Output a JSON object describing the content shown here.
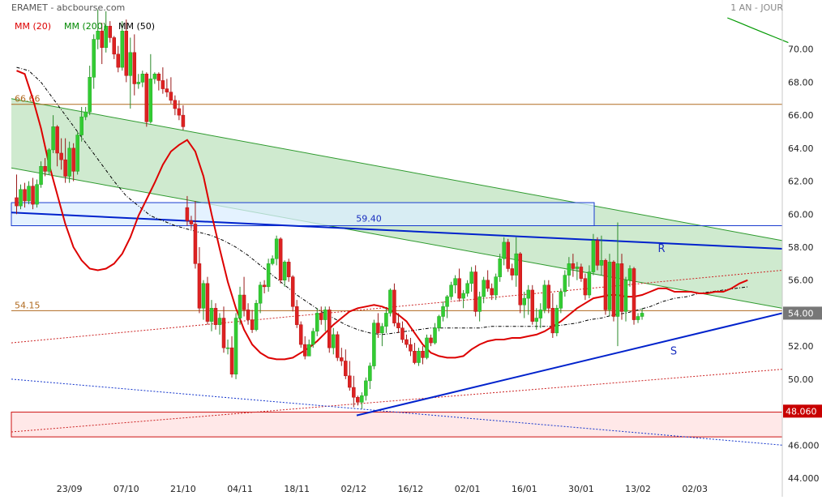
{
  "header": {
    "title": "ERAMET - abcbourse.com",
    "period": "1 AN - JOUR"
  },
  "legend": [
    {
      "label": "MM (20)",
      "color": "#dd0000"
    },
    {
      "label": "MM (200)",
      "color": "#008800"
    },
    {
      "label": "MM (50)",
      "color": "#000000"
    }
  ],
  "colors": {
    "up_candle": "#33cc33",
    "down_candle": "#dd2222",
    "ma20": "#dd0000",
    "ma50": "#000000",
    "ma200": "#009900",
    "channel_fill": "#a8d8a8",
    "support_resistance": "#0022cc",
    "fib_line": "#b06a20",
    "zone_blue": "#dbeeff",
    "zone_red": "#ffe8e8"
  },
  "chart_data": {
    "type": "candlestick",
    "ylim": [
      44,
      72
    ],
    "y_ticks": [
      "70.00",
      "68.00",
      "66.00",
      "64.00",
      "62.00",
      "60.00",
      "58.00",
      "56.00",
      "54.00",
      "52.00",
      "50.00",
      "48.00",
      "46.000",
      "44.000"
    ],
    "y_tick_values": [
      70,
      68,
      66,
      64,
      62,
      60,
      58,
      56,
      54,
      52,
      50,
      48,
      46,
      44
    ],
    "x_ticks": [
      "23/09",
      "07/10",
      "21/10",
      "04/11",
      "18/11",
      "02/12",
      "16/12",
      "02/01",
      "16/01",
      "30/01",
      "13/02",
      "02/03"
    ],
    "x_tick_bar_index": [
      13,
      27,
      41,
      55,
      69,
      83,
      97,
      111,
      125,
      139,
      153,
      167
    ],
    "last_price_label": "54.00",
    "last_price_value": 54.0,
    "low_level_label": "48.060",
    "low_level_value": 48.06,
    "annotations": [
      {
        "text": "66.66",
        "value": 66.66
      },
      {
        "text": "54.15",
        "value": 54.15
      },
      {
        "text": "59.40",
        "value": 59.4
      },
      {
        "text": "R",
        "value": 57.7
      },
      {
        "text": "S",
        "value": 51.5
      }
    ],
    "candles": [
      [
        61.0,
        62.4,
        60.0,
        60.5
      ],
      [
        60.5,
        61.8,
        60.3,
        61.5
      ],
      [
        61.5,
        61.9,
        60.4,
        60.8
      ],
      [
        60.8,
        62.0,
        60.6,
        61.7
      ],
      [
        61.7,
        62.2,
        60.3,
        60.6
      ],
      [
        60.6,
        62.1,
        60.4,
        61.8
      ],
      [
        61.8,
        63.2,
        61.6,
        62.9
      ],
      [
        62.9,
        63.4,
        62.3,
        62.6
      ],
      [
        62.6,
        64.0,
        62.4,
        63.9
      ],
      [
        63.9,
        66.0,
        63.7,
        65.3
      ],
      [
        65.3,
        65.4,
        62.9,
        63.7
      ],
      [
        63.7,
        64.6,
        62.7,
        63.3
      ],
      [
        63.3,
        64.6,
        61.9,
        62.3
      ],
      [
        62.3,
        64.4,
        61.9,
        64.0
      ],
      [
        64.0,
        64.3,
        62.0,
        62.6
      ],
      [
        62.6,
        65.0,
        62.4,
        64.8
      ],
      [
        64.8,
        66.5,
        64.4,
        65.9
      ],
      [
        65.9,
        66.5,
        65.7,
        66.2
      ],
      [
        66.2,
        69.0,
        66.0,
        68.3
      ],
      [
        68.3,
        70.9,
        67.6,
        70.6
      ],
      [
        70.6,
        72.4,
        70.0,
        71.1
      ],
      [
        71.1,
        71.6,
        69.1,
        70.1
      ],
      [
        70.1,
        72.3,
        69.8,
        71.4
      ],
      [
        71.4,
        71.7,
        70.4,
        70.7
      ],
      [
        70.7,
        70.8,
        69.4,
        69.7
      ],
      [
        69.7,
        70.2,
        68.6,
        68.9
      ],
      [
        68.9,
        71.7,
        68.7,
        71.1
      ],
      [
        71.1,
        71.8,
        68.0,
        68.4
      ],
      [
        68.4,
        70.7,
        66.4,
        69.8
      ],
      [
        69.8,
        70.9,
        67.2,
        67.9
      ],
      [
        67.9,
        68.5,
        67.6,
        68.0
      ],
      [
        68.0,
        68.7,
        67.7,
        68.5
      ],
      [
        68.5,
        68.6,
        65.3,
        65.6
      ],
      [
        65.6,
        69.7,
        65.5,
        68.2
      ],
      [
        68.2,
        68.6,
        67.9,
        68.5
      ],
      [
        68.5,
        68.6,
        67.5,
        68.1
      ],
      [
        68.1,
        68.9,
        67.3,
        67.6
      ],
      [
        67.6,
        68.2,
        67.1,
        67.4
      ],
      [
        67.4,
        68.3,
        66.7,
        66.9
      ],
      [
        66.9,
        67.2,
        66.0,
        66.4
      ],
      [
        66.4,
        66.9,
        65.7,
        66.0
      ],
      [
        66.0,
        66.6,
        65.1,
        65.3
      ],
      [
        60.4,
        61.1,
        59.3,
        59.6
      ],
      [
        59.6,
        59.9,
        59.1,
        59.4
      ],
      [
        59.4,
        60.8,
        56.7,
        57.0
      ],
      [
        57.0,
        58.0,
        54.0,
        54.3
      ],
      [
        54.3,
        56.0,
        53.6,
        55.8
      ],
      [
        55.8,
        56.2,
        53.3,
        53.5
      ],
      [
        53.5,
        54.8,
        52.9,
        54.3
      ],
      [
        54.3,
        54.6,
        53.0,
        53.3
      ],
      [
        53.3,
        54.0,
        52.7,
        53.7
      ],
      [
        53.7,
        54.4,
        51.6,
        51.9
      ],
      [
        51.9,
        52.4,
        51.5,
        51.9
      ],
      [
        51.9,
        52.6,
        50.1,
        50.3
      ],
      [
        50.3,
        54.0,
        50.0,
        53.7
      ],
      [
        53.7,
        55.6,
        53.3,
        55.1
      ],
      [
        55.1,
        56.2,
        53.8,
        54.2
      ],
      [
        54.2,
        54.6,
        53.3,
        53.6
      ],
      [
        53.6,
        54.2,
        52.8,
        53.0
      ],
      [
        53.0,
        54.8,
        52.9,
        54.6
      ],
      [
        54.6,
        55.9,
        54.0,
        55.7
      ],
      [
        55.7,
        56.0,
        55.2,
        55.6
      ],
      [
        55.6,
        57.3,
        55.3,
        57.0
      ],
      [
        57.0,
        57.5,
        56.9,
        57.3
      ],
      [
        57.3,
        58.7,
        56.9,
        58.5
      ],
      [
        58.5,
        58.6,
        55.8,
        56.0
      ],
      [
        56.0,
        57.2,
        55.6,
        57.1
      ],
      [
        57.1,
        57.3,
        55.9,
        56.2
      ],
      [
        56.2,
        56.3,
        54.1,
        54.4
      ],
      [
        54.4,
        54.8,
        53.1,
        53.3
      ],
      [
        53.3,
        53.5,
        51.9,
        52.1
      ],
      [
        52.1,
        52.6,
        51.2,
        51.4
      ],
      [
        51.4,
        52.4,
        51.6,
        52.1
      ],
      [
        52.1,
        53.1,
        51.9,
        52.9
      ],
      [
        52.9,
        54.3,
        52.6,
        54.0
      ],
      [
        54.0,
        54.4,
        53.3,
        53.6
      ],
      [
        53.6,
        54.4,
        52.9,
        54.2
      ],
      [
        54.2,
        54.4,
        51.6,
        51.9
      ],
      [
        51.9,
        53.1,
        51.5,
        52.7
      ],
      [
        52.7,
        52.9,
        51.1,
        51.3
      ],
      [
        51.3,
        51.9,
        50.8,
        51.1
      ],
      [
        51.1,
        51.8,
        50.0,
        50.2
      ],
      [
        50.2,
        51.1,
        49.3,
        49.5
      ],
      [
        49.5,
        50.2,
        48.3,
        48.9
      ],
      [
        48.9,
        49.0,
        48.4,
        48.6
      ],
      [
        48.6,
        49.2,
        48.2,
        49.0
      ],
      [
        49.0,
        50.1,
        48.7,
        49.9
      ],
      [
        49.9,
        51.0,
        49.4,
        50.8
      ],
      [
        50.8,
        53.6,
        50.6,
        53.4
      ],
      [
        53.4,
        54.0,
        52.5,
        52.8
      ],
      [
        52.8,
        53.4,
        52.0,
        53.2
      ],
      [
        53.2,
        54.3,
        52.8,
        54.0
      ],
      [
        54.0,
        55.5,
        53.8,
        55.4
      ],
      [
        55.4,
        55.8,
        53.2,
        53.4
      ],
      [
        53.4,
        54.0,
        52.8,
        53.1
      ],
      [
        53.1,
        53.5,
        52.2,
        52.4
      ],
      [
        52.4,
        52.7,
        51.9,
        52.1
      ],
      [
        52.1,
        52.5,
        51.4,
        51.7
      ],
      [
        51.7,
        52.2,
        50.9,
        51.0
      ],
      [
        51.0,
        51.9,
        50.8,
        51.7
      ],
      [
        51.7,
        52.0,
        50.9,
        51.3
      ],
      [
        51.3,
        52.7,
        51.2,
        52.5
      ],
      [
        52.5,
        52.7,
        52.0,
        52.2
      ],
      [
        52.2,
        53.4,
        52.1,
        53.1
      ],
      [
        53.1,
        53.9,
        52.9,
        53.8
      ],
      [
        53.8,
        54.7,
        53.5,
        54.4
      ],
      [
        54.4,
        55.1,
        53.7,
        55.0
      ],
      [
        55.0,
        55.9,
        54.8,
        55.7
      ],
      [
        55.7,
        56.3,
        55.2,
        56.1
      ],
      [
        56.1,
        56.7,
        54.7,
        54.9
      ],
      [
        54.9,
        55.4,
        54.3,
        55.2
      ],
      [
        55.2,
        56.0,
        55.0,
        55.8
      ],
      [
        55.8,
        56.8,
        55.3,
        56.5
      ],
      [
        56.5,
        56.9,
        53.8,
        54.1
      ],
      [
        54.1,
        55.3,
        53.5,
        55.0
      ],
      [
        55.0,
        56.2,
        54.6,
        56.0
      ],
      [
        56.0,
        56.6,
        55.3,
        55.5
      ],
      [
        55.5,
        55.8,
        54.8,
        55.1
      ],
      [
        55.1,
        56.4,
        54.8,
        56.2
      ],
      [
        56.2,
        57.6,
        55.9,
        57.3
      ],
      [
        57.3,
        58.6,
        56.9,
        58.3
      ],
      [
        58.3,
        58.5,
        56.5,
        56.7
      ],
      [
        56.7,
        57.0,
        56.0,
        56.3
      ],
      [
        56.3,
        58.6,
        55.6,
        57.6
      ],
      [
        57.6,
        57.7,
        54.0,
        54.5
      ],
      [
        54.5,
        55.3,
        53.7,
        54.9
      ],
      [
        54.9,
        55.7,
        53.9,
        55.4
      ],
      [
        55.4,
        55.7,
        53.3,
        53.5
      ],
      [
        53.5,
        54.3,
        53.0,
        53.7
      ],
      [
        53.7,
        54.6,
        53.1,
        54.2
      ],
      [
        54.2,
        56.0,
        54.0,
        55.7
      ],
      [
        55.7,
        56.0,
        54.0,
        54.3
      ],
      [
        54.3,
        55.2,
        52.5,
        52.8
      ],
      [
        52.8,
        54.5,
        52.6,
        54.3
      ],
      [
        54.3,
        55.5,
        54.0,
        55.3
      ],
      [
        55.3,
        56.6,
        55.0,
        56.3
      ],
      [
        56.3,
        57.4,
        55.6,
        57.0
      ],
      [
        57.0,
        57.6,
        56.2,
        56.7
      ],
      [
        56.7,
        57.1,
        56.0,
        56.8
      ],
      [
        56.8,
        57.0,
        55.9,
        56.1
      ],
      [
        56.1,
        56.4,
        54.8,
        55.1
      ],
      [
        55.1,
        56.9,
        54.9,
        56.5
      ],
      [
        56.5,
        58.8,
        56.3,
        58.4
      ],
      [
        58.4,
        58.6,
        56.6,
        56.9
      ],
      [
        56.9,
        58.7,
        56.3,
        57.2
      ],
      [
        57.2,
        57.3,
        53.9,
        54.2
      ],
      [
        54.2,
        57.6,
        53.8,
        57.1
      ],
      [
        57.1,
        57.2,
        53.5,
        53.8
      ],
      [
        53.8,
        59.5,
        52.0,
        57.0
      ],
      [
        57.0,
        57.6,
        53.6,
        54.1
      ],
      [
        54.1,
        56.2,
        53.5,
        56.0
      ],
      [
        56.0,
        56.9,
        55.6,
        56.7
      ],
      [
        56.7,
        56.8,
        53.3,
        53.6
      ],
      [
        53.6,
        54.0,
        53.4,
        53.8
      ],
      [
        53.8,
        54.3,
        53.6,
        54.0
      ]
    ],
    "ma20": [
      [
        0,
        68.7
      ],
      [
        2,
        68.5
      ],
      [
        4,
        67.0
      ],
      [
        6,
        65.2
      ],
      [
        8,
        63.0
      ],
      [
        10,
        61.2
      ],
      [
        12,
        59.4
      ],
      [
        14,
        58.0
      ],
      [
        16,
        57.2
      ],
      [
        18,
        56.7
      ],
      [
        20,
        56.6
      ],
      [
        22,
        56.7
      ],
      [
        24,
        57.0
      ],
      [
        26,
        57.6
      ],
      [
        28,
        58.6
      ],
      [
        30,
        59.9
      ],
      [
        32,
        60.9
      ],
      [
        34,
        61.9
      ],
      [
        36,
        63.0
      ],
      [
        38,
        63.8
      ],
      [
        40,
        64.2
      ],
      [
        42,
        64.5
      ],
      [
        44,
        63.8
      ],
      [
        46,
        62.3
      ],
      [
        48,
        60.0
      ],
      [
        50,
        57.9
      ],
      [
        52,
        55.9
      ],
      [
        54,
        54.3
      ],
      [
        56,
        53.0
      ],
      [
        58,
        52.1
      ],
      [
        60,
        51.6
      ],
      [
        62,
        51.3
      ],
      [
        64,
        51.2
      ],
      [
        66,
        51.2
      ],
      [
        68,
        51.3
      ],
      [
        70,
        51.6
      ],
      [
        72,
        51.9
      ],
      [
        74,
        52.3
      ],
      [
        76,
        52.8
      ],
      [
        78,
        53.3
      ],
      [
        80,
        53.7
      ],
      [
        82,
        54.1
      ],
      [
        84,
        54.3
      ],
      [
        86,
        54.4
      ],
      [
        88,
        54.5
      ],
      [
        90,
        54.4
      ],
      [
        92,
        54.2
      ],
      [
        94,
        53.9
      ],
      [
        96,
        53.5
      ],
      [
        98,
        52.8
      ],
      [
        100,
        52.1
      ],
      [
        102,
        51.6
      ],
      [
        104,
        51.4
      ],
      [
        106,
        51.3
      ],
      [
        108,
        51.3
      ],
      [
        110,
        51.4
      ],
      [
        112,
        51.8
      ],
      [
        114,
        52.1
      ],
      [
        116,
        52.3
      ],
      [
        118,
        52.4
      ],
      [
        120,
        52.4
      ],
      [
        122,
        52.5
      ],
      [
        124,
        52.5
      ],
      [
        126,
        52.6
      ],
      [
        128,
        52.7
      ],
      [
        130,
        52.9
      ],
      [
        132,
        53.2
      ],
      [
        134,
        53.5
      ],
      [
        136,
        53.9
      ],
      [
        138,
        54.3
      ],
      [
        140,
        54.6
      ],
      [
        142,
        54.9
      ],
      [
        144,
        55.0
      ],
      [
        146,
        55.1
      ],
      [
        148,
        55.1
      ],
      [
        150,
        55.0
      ],
      [
        152,
        55.0
      ],
      [
        154,
        55.1
      ],
      [
        156,
        55.3
      ],
      [
        158,
        55.5
      ],
      [
        160,
        55.5
      ],
      [
        162,
        55.3
      ],
      [
        164,
        55.3
      ],
      [
        166,
        55.3
      ],
      [
        168,
        55.2
      ],
      [
        170,
        55.2
      ],
      [
        172,
        55.3
      ],
      [
        174,
        55.3
      ],
      [
        176,
        55.5
      ],
      [
        178,
        55.8
      ],
      [
        180,
        56.0
      ]
    ],
    "ma50": [
      [
        0,
        68.9
      ],
      [
        3,
        68.7
      ],
      [
        6,
        68.0
      ],
      [
        9,
        67.0
      ],
      [
        12,
        66.0
      ],
      [
        15,
        65.0
      ],
      [
        18,
        64.0
      ],
      [
        21,
        63.0
      ],
      [
        24,
        62.0
      ],
      [
        27,
        61.1
      ],
      [
        30,
        60.5
      ],
      [
        33,
        59.9
      ],
      [
        36,
        59.6
      ],
      [
        39,
        59.3
      ],
      [
        42,
        59.1
      ],
      [
        45,
        58.9
      ],
      [
        48,
        58.7
      ],
      [
        51,
        58.4
      ],
      [
        54,
        58.0
      ],
      [
        57,
        57.5
      ],
      [
        60,
        56.9
      ],
      [
        63,
        56.3
      ],
      [
        66,
        55.7
      ],
      [
        69,
        55.1
      ],
      [
        72,
        54.6
      ],
      [
        75,
        54.1
      ],
      [
        78,
        53.7
      ],
      [
        81,
        53.3
      ],
      [
        84,
        53.0
      ],
      [
        87,
        52.8
      ],
      [
        90,
        52.7
      ],
      [
        93,
        52.8
      ],
      [
        96,
        52.9
      ],
      [
        99,
        53.0
      ],
      [
        102,
        53.1
      ],
      [
        105,
        53.1
      ],
      [
        108,
        53.1
      ],
      [
        111,
        53.1
      ],
      [
        114,
        53.1
      ],
      [
        117,
        53.2
      ],
      [
        120,
        53.2
      ],
      [
        123,
        53.2
      ],
      [
        126,
        53.2
      ],
      [
        129,
        53.2
      ],
      [
        132,
        53.2
      ],
      [
        135,
        53.3
      ],
      [
        138,
        53.4
      ],
      [
        141,
        53.6
      ],
      [
        144,
        53.7
      ],
      [
        147,
        53.9
      ],
      [
        150,
        54.0
      ],
      [
        153,
        54.2
      ],
      [
        156,
        54.4
      ],
      [
        159,
        54.7
      ],
      [
        162,
        54.9
      ],
      [
        165,
        55.0
      ],
      [
        168,
        55.2
      ],
      [
        171,
        55.3
      ],
      [
        174,
        55.4
      ],
      [
        177,
        55.5
      ],
      [
        180,
        55.6
      ]
    ],
    "ma200": [
      [
        175,
        71.9
      ],
      [
        178,
        71.6
      ],
      [
        181,
        71.3
      ],
      [
        184,
        71.0
      ],
      [
        187,
        70.7
      ],
      [
        190,
        70.4
      ]
    ]
  }
}
